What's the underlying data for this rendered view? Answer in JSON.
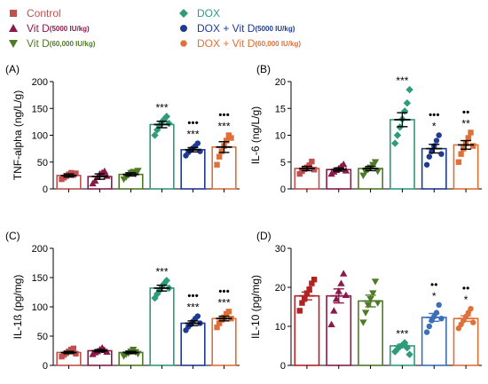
{
  "legend": [
    {
      "label": "Control",
      "dose": "",
      "color": "#c0504d",
      "marker": "square"
    },
    {
      "label": "Vit D",
      "dose": "(5000 IU/kg)",
      "color": "#8b1a4a",
      "marker": "triangle-up"
    },
    {
      "label": "Vit D",
      "dose": "(60,000 IU/kg)",
      "color": "#4f7a28",
      "marker": "triangle-down"
    },
    {
      "label": "DOX",
      "dose": "",
      "color": "#2e9b7b",
      "marker": "diamond"
    },
    {
      "label": "DOX + Vit D",
      "dose": "(5000 IU/kg)",
      "color": "#1f3a93",
      "marker": "circle"
    },
    {
      "label": "DOX + Vit D",
      "dose": "(60,000 IU/kg)",
      "color": "#e0703a",
      "marker": "hexagon"
    }
  ],
  "chart_data": [
    {
      "panel": "(A)",
      "type": "bar",
      "ylabel": "TNF-alpha (ng/L/g)",
      "ylim": [
        0,
        200
      ],
      "yticks": [
        0,
        50,
        100,
        150,
        200
      ],
      "groups": [
        {
          "group": "Control",
          "mean": 25,
          "sem": 3,
          "points": [
            18,
            21,
            24,
            27,
            30,
            26,
            29
          ],
          "color": "#c0504d",
          "marker": "square",
          "sig": [],
          "errColor": "#000000"
        },
        {
          "group": "Vit D (5000 IU/kg)",
          "mean": 23,
          "sem": 5,
          "points": [
            10,
            15,
            22,
            28,
            30,
            33,
            24
          ],
          "color": "#8b1a4a",
          "marker": "triangle-up",
          "sig": [],
          "errColor": "#000000"
        },
        {
          "group": "Vit D (60,000 IU/kg)",
          "mean": 27,
          "sem": 3,
          "points": [
            18,
            22,
            26,
            30,
            32,
            28,
            34
          ],
          "color": "#4f7a28",
          "marker": "triangle-down",
          "sig": [],
          "errColor": "#000000"
        },
        {
          "group": "DOX",
          "mean": 120,
          "sem": 6,
          "points": [
            100,
            110,
            118,
            125,
            130,
            135,
            122
          ],
          "color": "#2e9b7b",
          "marker": "diamond",
          "sig": [
            "***"
          ],
          "errColor": "#000000"
        },
        {
          "group": "DOX + Vit D (5000 IU/kg)",
          "mean": 73,
          "sem": 4,
          "points": [
            62,
            68,
            72,
            76,
            80,
            85,
            70
          ],
          "color": "#1f3a93",
          "marker": "circle",
          "sig": [
            "•••",
            "***"
          ],
          "errColor": "#000000"
        },
        {
          "group": "DOX + Vit D (60,000 IU/kg)",
          "mean": 78,
          "sem": 10,
          "points": [
            45,
            60,
            70,
            80,
            90,
            100,
            95
          ],
          "color": "#e0703a",
          "marker": "square",
          "sig": [
            "•••",
            "***"
          ],
          "errColor": "#000000"
        }
      ]
    },
    {
      "panel": "(B)",
      "type": "bar",
      "ylabel": "IL-6 (ng/L/g)",
      "ylim": [
        0,
        20
      ],
      "yticks": [
        0,
        5,
        10,
        15,
        20
      ],
      "groups": [
        {
          "group": "Control",
          "mean": 3.8,
          "sem": 0.4,
          "points": [
            2.8,
            3.3,
            3.7,
            4.0,
            4.4,
            5.1,
            3.6
          ],
          "color": "#c0504d",
          "marker": "square",
          "sig": [],
          "errColor": "#000000"
        },
        {
          "group": "Vit D (5000 IU/kg)",
          "mean": 3.6,
          "sem": 0.3,
          "points": [
            2.8,
            3.2,
            3.5,
            3.8,
            4.2,
            4.6,
            3.4
          ],
          "color": "#8b1a4a",
          "marker": "triangle-up",
          "sig": [],
          "errColor": "#000000"
        },
        {
          "group": "Vit D (60,000 IU/kg)",
          "mean": 3.8,
          "sem": 0.4,
          "points": [
            2.5,
            3.2,
            3.6,
            4.0,
            4.5,
            5.0,
            3.3
          ],
          "color": "#4f7a28",
          "marker": "triangle-down",
          "sig": [],
          "errColor": "#000000"
        },
        {
          "group": "DOX",
          "mean": 12.9,
          "sem": 1.3,
          "points": [
            8.5,
            10.0,
            11.5,
            13.0,
            14.5,
            16.0,
            18.5
          ],
          "color": "#2e9b7b",
          "marker": "diamond",
          "sig": [
            "***"
          ],
          "errColor": "#000000"
        },
        {
          "group": "DOX + Vit D (5000 IU/kg)",
          "mean": 7.5,
          "sem": 0.8,
          "points": [
            4.5,
            6.0,
            7.0,
            8.0,
            9.0,
            10.0,
            6.5
          ],
          "color": "#1f3a93",
          "marker": "circle",
          "sig": [
            "•••",
            "*"
          ],
          "errColor": "#000000"
        },
        {
          "group": "DOX + Vit D (60,000 IU/kg)",
          "mean": 8.2,
          "sem": 0.8,
          "points": [
            5.0,
            6.5,
            7.5,
            8.5,
            9.5,
            10.5,
            8.0
          ],
          "color": "#e0703a",
          "marker": "square",
          "sig": [
            "••",
            "**"
          ],
          "errColor": "#000000"
        }
      ]
    },
    {
      "panel": "(C)",
      "type": "bar",
      "ylabel": "IL-1ß (pg/mg)",
      "ylim": [
        0,
        200
      ],
      "yticks": [
        0,
        50,
        100,
        150,
        200
      ],
      "groups": [
        {
          "group": "Control",
          "mean": 22,
          "sem": 2,
          "points": [
            15,
            18,
            21,
            24,
            27,
            29,
            20
          ],
          "color": "#c0504d",
          "marker": "square",
          "sig": [],
          "errColor": "#000000"
        },
        {
          "group": "Vit D (5000 IU/kg)",
          "mean": 25,
          "sem": 2,
          "points": [
            19,
            22,
            24,
            27,
            30,
            26,
            23
          ],
          "color": "#8b1a4a",
          "marker": "triangle-up",
          "sig": [],
          "errColor": "#000000"
        },
        {
          "group": "Vit D (60,000 IU/kg)",
          "mean": 22,
          "sem": 2,
          "points": [
            16,
            19,
            21,
            24,
            27,
            23,
            20
          ],
          "color": "#4f7a28",
          "marker": "triangle-down",
          "sig": [],
          "errColor": "#000000"
        },
        {
          "group": "DOX",
          "mean": 132,
          "sem": 5,
          "points": [
            115,
            122,
            128,
            135,
            140,
            145,
            132
          ],
          "color": "#2e9b7b",
          "marker": "diamond",
          "sig": [
            "***"
          ],
          "errColor": "#000000"
        },
        {
          "group": "DOX + Vit D (5000 IU/kg)",
          "mean": 72,
          "sem": 4,
          "points": [
            60,
            66,
            70,
            75,
            80,
            84,
            72
          ],
          "color": "#1f3a93",
          "marker": "circle",
          "sig": [
            "•••",
            "***"
          ],
          "errColor": "#000000"
        },
        {
          "group": "DOX + Vit D (60,000 IU/kg)",
          "mean": 80,
          "sem": 4,
          "points": [
            65,
            72,
            78,
            82,
            88,
            92,
            80
          ],
          "color": "#e0703a",
          "marker": "square",
          "sig": [
            "•••",
            "***"
          ],
          "errColor": "#000000"
        }
      ]
    },
    {
      "panel": "(D)",
      "type": "bar",
      "ylabel": "IL-10 (pg/mg)",
      "ylim": [
        0,
        30
      ],
      "yticks": [
        0,
        10,
        20,
        30
      ],
      "groups": [
        {
          "group": "Control",
          "mean": 17.8,
          "sem": 1.0,
          "points": [
            14.0,
            16.0,
            17.0,
            18.5,
            19.5,
            21.0,
            22.0
          ],
          "color": "#b22222",
          "marker": "square",
          "sig": [],
          "errColor": "#b22222"
        },
        {
          "group": "Vit D (5000 IU/kg)",
          "mean": 17.8,
          "sem": 1.8,
          "points": [
            10.5,
            14.0,
            17.0,
            19.0,
            21.0,
            23.5,
            18.0
          ],
          "color": "#8b1a4a",
          "marker": "triangle-up",
          "sig": [],
          "errColor": "#8b1a4a"
        },
        {
          "group": "Vit D (60,000 IU/kg)",
          "mean": 16.5,
          "sem": 1.5,
          "points": [
            11.0,
            13.5,
            15.5,
            17.0,
            18.5,
            21.5,
            16.0
          ],
          "color": "#4f7a28",
          "marker": "triangle-down",
          "sig": [],
          "errColor": "#4f7a28"
        },
        {
          "group": "DOX",
          "mean": 5.0,
          "sem": 0.4,
          "points": [
            3.5,
            4.2,
            4.8,
            5.2,
            5.8,
            4.5,
            2.8
          ],
          "color": "#2e9b7b",
          "marker": "diamond",
          "sig": [
            "***"
          ],
          "errColor": "#2e9b7b"
        },
        {
          "group": "DOX + Vit D (5000 IU/kg)",
          "mean": 12.3,
          "sem": 1.0,
          "points": [
            8.5,
            10.0,
            11.5,
            12.5,
            13.5,
            15.5,
            12.0
          ],
          "color": "#3b6fb6",
          "marker": "circle",
          "sig": [
            "••",
            "*"
          ],
          "errColor": "#3b6fb6"
        },
        {
          "group": "DOX + Vit D (60,000 IU/kg)",
          "mean": 12.0,
          "sem": 0.7,
          "points": [
            9.5,
            10.5,
            11.5,
            12.5,
            13.5,
            14.5,
            11.0
          ],
          "color": "#e0703a",
          "marker": "circle",
          "sig": [
            "••",
            "*"
          ],
          "errColor": "#e0703a"
        }
      ]
    }
  ]
}
